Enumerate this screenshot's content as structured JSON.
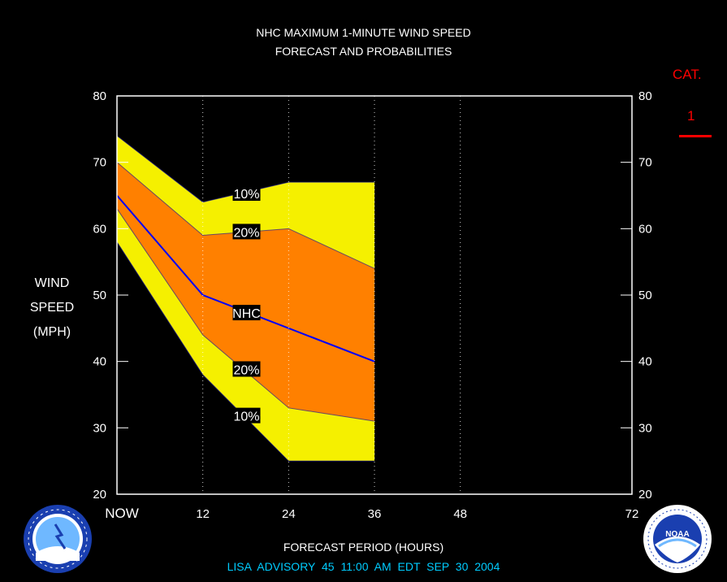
{
  "title_line1": "NHC MAXIMUM 1-MINUTE WIND SPEED",
  "title_line2": "FORECAST AND PROBABILITIES",
  "y_label": [
    "WIND",
    "SPEED",
    "(MPH)"
  ],
  "category": {
    "label": "CAT.",
    "value": "1"
  },
  "x_label": "FORECAST PERIOD (HOURS)",
  "advisory": "LISA   ADVISORY  45 11:00 AM EDT SEP 30 2004",
  "logos": {
    "left": "National Weather Service",
    "right": "NOAA"
  },
  "colors": {
    "outer_band": "#f5f000",
    "inner_band": "#ff8000",
    "nhc_line": "#0000ff",
    "background": "#000000",
    "category": "#ff0000",
    "advisory": "#00ccff"
  },
  "chart_data": {
    "type": "area",
    "x": [
      0,
      12,
      24,
      36
    ],
    "x_ticks": [
      0,
      12,
      24,
      36,
      48,
      72
    ],
    "x_tick_labels": [
      "NOW",
      "12",
      "24",
      "36",
      "48",
      "72"
    ],
    "xlim": [
      0,
      72
    ],
    "ylim": [
      20,
      80
    ],
    "y_ticks": [
      20,
      30,
      40,
      50,
      60,
      70,
      80
    ],
    "series": [
      {
        "name": "10%",
        "upper": [
          74,
          64,
          67,
          67
        ],
        "lower": [
          58,
          38,
          25,
          25
        ]
      },
      {
        "name": "20%",
        "upper": [
          70,
          59,
          60,
          54
        ],
        "lower": [
          63,
          44,
          33,
          31
        ]
      },
      {
        "name": "NHC",
        "values": [
          65,
          50,
          45,
          40
        ]
      }
    ],
    "labels": [
      {
        "text": "10%",
        "x": 18,
        "y": 65.3
      },
      {
        "text": "20%",
        "x": 18,
        "y": 59.5
      },
      {
        "text": "NHC",
        "x": 18,
        "y": 47.3
      },
      {
        "text": "20%",
        "x": 18,
        "y": 38.8
      },
      {
        "text": "10%",
        "x": 18,
        "y": 31.8
      }
    ]
  }
}
